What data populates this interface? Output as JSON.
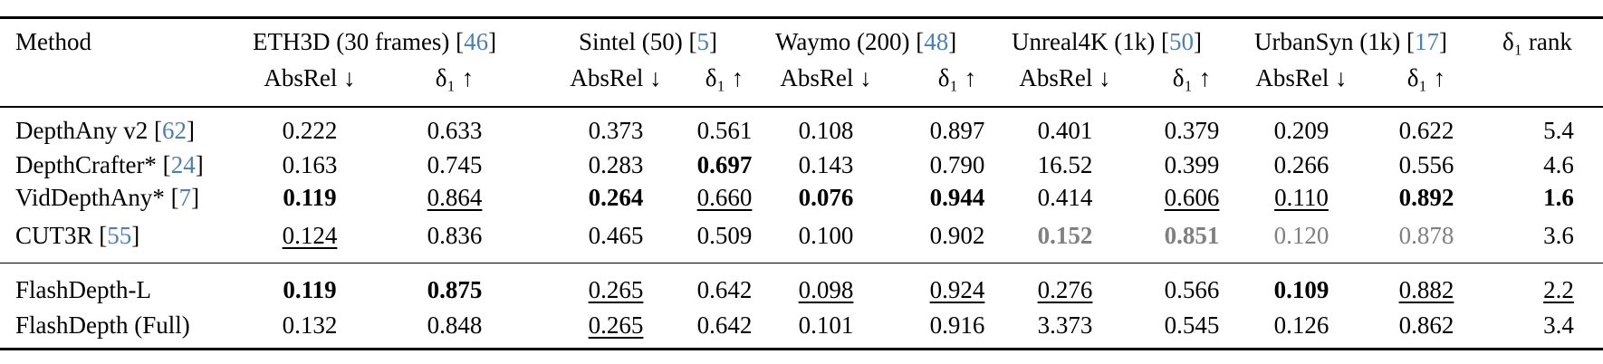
{
  "table": {
    "method_header": "Method",
    "groups": [
      {
        "name": "ETH3D (30 frames) [",
        "ref": "46",
        "close": "]"
      },
      {
        "name": "Sintel (50) [",
        "ref": "5",
        "close": "]"
      },
      {
        "name": "Waymo (200) [",
        "ref": "48",
        "close": "]"
      },
      {
        "name": "Unreal4K (1k) [",
        "ref": "50",
        "close": "]"
      },
      {
        "name": "UrbanSyn (1k) [",
        "ref": "17",
        "close": "]"
      }
    ],
    "rank_header": "δ₁ rank",
    "sub_absrel": "AbsRel ↓",
    "sub_delta": "δ₁ ↑",
    "rows": [
      {
        "method": "DepthAny v2 [",
        "ref": "62",
        "close": "]",
        "values": [
          "0.222",
          "0.633",
          "0.373",
          "0.561",
          "0.108",
          "0.897",
          "0.401",
          "0.379",
          "0.209",
          "0.622",
          "5.4"
        ],
        "styles": [
          "",
          "",
          "",
          "",
          "",
          "",
          "",
          "",
          "",
          "",
          ""
        ]
      },
      {
        "method": "DepthCrafter* [",
        "ref": "24",
        "close": "]",
        "values": [
          "0.163",
          "0.745",
          "0.283",
          "0.697",
          "0.143",
          "0.790",
          "16.52",
          "0.399",
          "0.266",
          "0.556",
          "4.6"
        ],
        "styles": [
          "",
          "",
          "",
          "b",
          "",
          "",
          "",
          "",
          "",
          "",
          ""
        ]
      },
      {
        "method": "VidDepthAny* [",
        "ref": "7",
        "close": "]",
        "values": [
          "0.119",
          "0.864",
          "0.264",
          "0.660",
          "0.076",
          "0.944",
          "0.414",
          "0.606",
          "0.110",
          "0.892",
          "1.6"
        ],
        "styles": [
          "b",
          "u",
          "b",
          "u",
          "b",
          "b",
          "",
          "u",
          "u",
          "b",
          "b"
        ]
      },
      {
        "method": "CUT3R [",
        "ref": "55",
        "close": "]",
        "values": [
          "0.124",
          "0.836",
          "0.465",
          "0.509",
          "0.100",
          "0.902",
          "0.152",
          "0.851",
          "0.120",
          "0.878",
          "3.6"
        ],
        "styles": [
          "u",
          "",
          "",
          "",
          "",
          "",
          "bg",
          "bg",
          "g",
          "g",
          ""
        ]
      },
      {
        "method": "FlashDepth-L",
        "ref": "",
        "close": "",
        "values": [
          "0.119",
          "0.875",
          "0.265",
          "0.642",
          "0.098",
          "0.924",
          "0.276",
          "0.566",
          "0.109",
          "0.882",
          "2.2"
        ],
        "styles": [
          "b",
          "b",
          "u",
          "",
          "u",
          "u",
          "u",
          "",
          "b",
          "u",
          "u"
        ]
      },
      {
        "method": "FlashDepth (Full)",
        "ref": "",
        "close": "",
        "values": [
          "0.132",
          "0.848",
          "0.265",
          "0.642",
          "0.101",
          "0.916",
          "3.373",
          "0.545",
          "0.126",
          "0.862",
          "3.4"
        ],
        "styles": [
          "",
          "",
          "u",
          "",
          "",
          "",
          "",
          "",
          "",
          "",
          ""
        ]
      }
    ]
  }
}
